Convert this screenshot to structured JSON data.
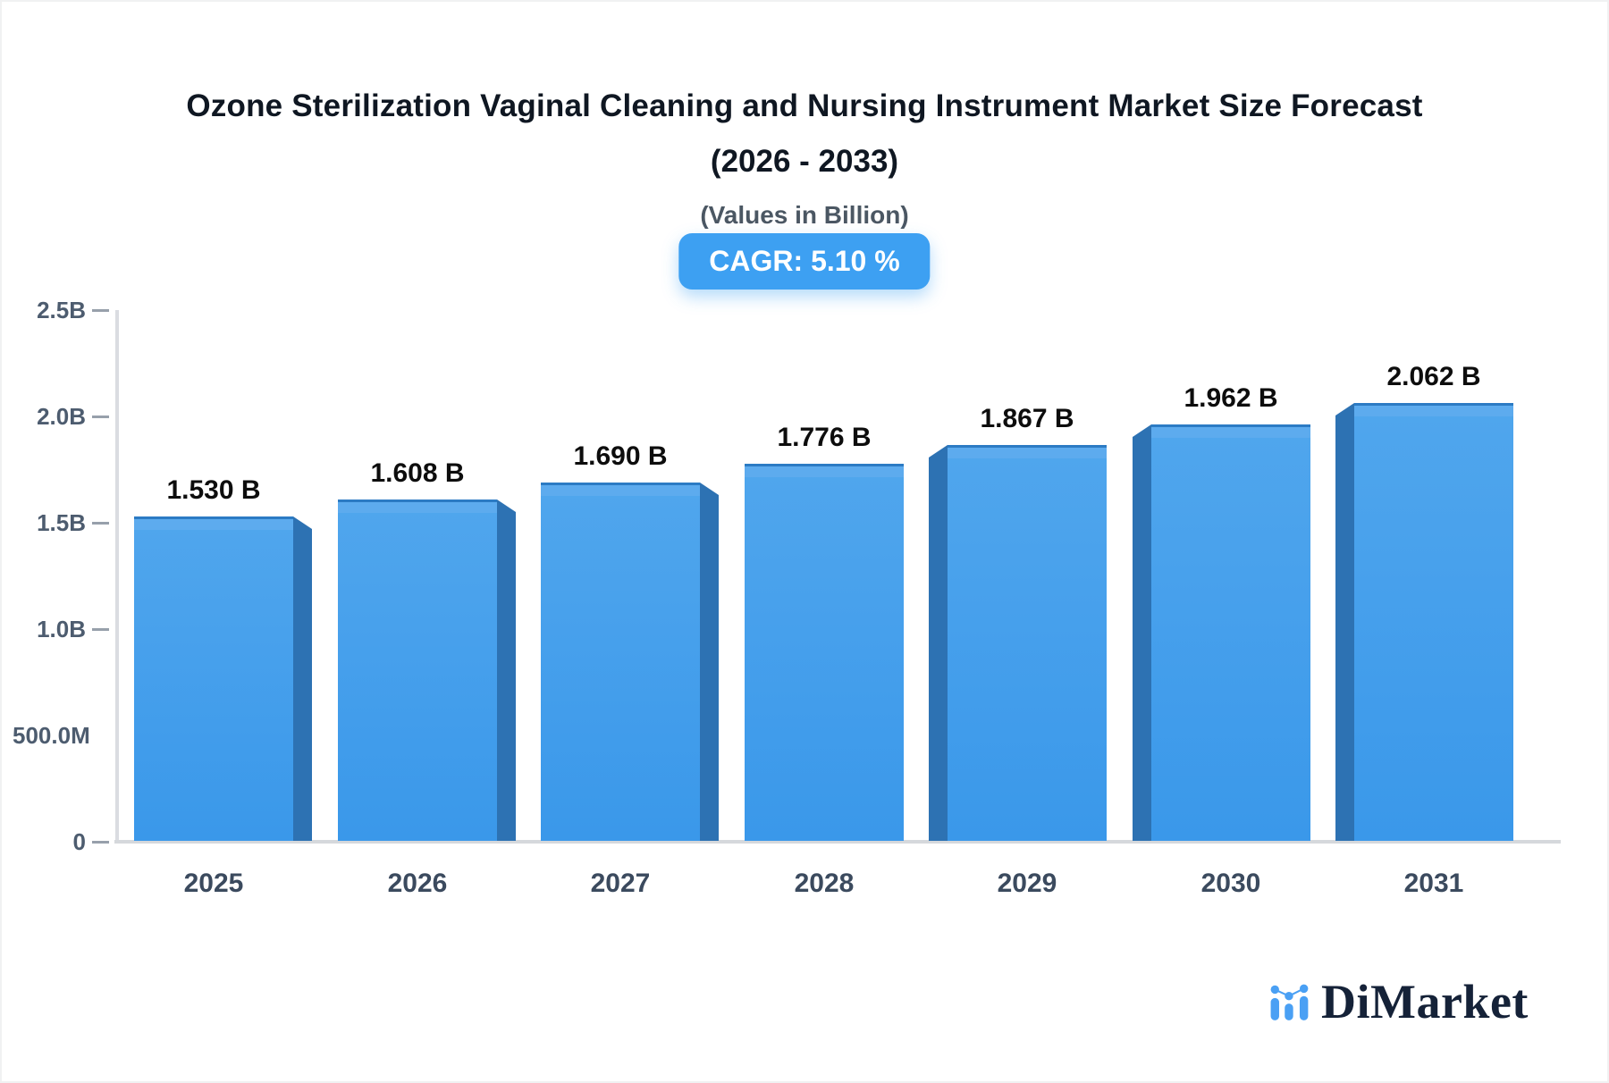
{
  "header": {
    "title_line1": "Ozone Sterilization Vaginal Cleaning and Nursing Instrument Market Size Forecast",
    "title_line2": "(2026 - 2033)",
    "subtitle": "(Values in Billion)",
    "cagr_badge": "CAGR: 5.10 %",
    "cagr_value_pct": 5.1
  },
  "chart_data": {
    "type": "bar",
    "categories": [
      "2025",
      "2026",
      "2027",
      "2028",
      "2029",
      "2030",
      "2031"
    ],
    "values": [
      1.53,
      1.608,
      1.69,
      1.776,
      1.867,
      1.962,
      2.062
    ],
    "value_labels": [
      "1.530 B",
      "1.608 B",
      "1.690 B",
      "1.776 B",
      "1.867 B",
      "1.962 B",
      "2.062 B"
    ],
    "unit": "Billion",
    "ylim": [
      0,
      2.5
    ],
    "grid": false,
    "legend": "none",
    "y_axis": {
      "ticks": [
        {
          "label": "2.5B",
          "value": 2.5,
          "dash": true
        },
        {
          "label": "2.0B",
          "value": 2.0,
          "dash": true
        },
        {
          "label": "1.5B",
          "value": 1.5,
          "dash": true
        },
        {
          "label": "1.0B",
          "value": 1.0,
          "dash": true
        },
        {
          "label": "500.0M",
          "value": 0.5,
          "dash": false
        },
        {
          "label": "0",
          "value": 0.0,
          "dash": true
        }
      ]
    }
  },
  "colors": {
    "bar_front_top": "#50a6ed",
    "bar_front_bottom": "#3a98ea",
    "bar_top_band": "#5dabee",
    "bar_side_dark": "#2d72b3",
    "bar_edge": "#2c7bc4",
    "badge_bg": "#3da0f2",
    "axis_line": "#dadce1",
    "tick_label": "#4d5c6f",
    "year_label": "#3b4a5e",
    "value_label": "#0d0d0d",
    "brand_blue": "#4aa0f4",
    "brand_navy": "#152238"
  },
  "footer": {
    "brand": "DiMarket"
  }
}
